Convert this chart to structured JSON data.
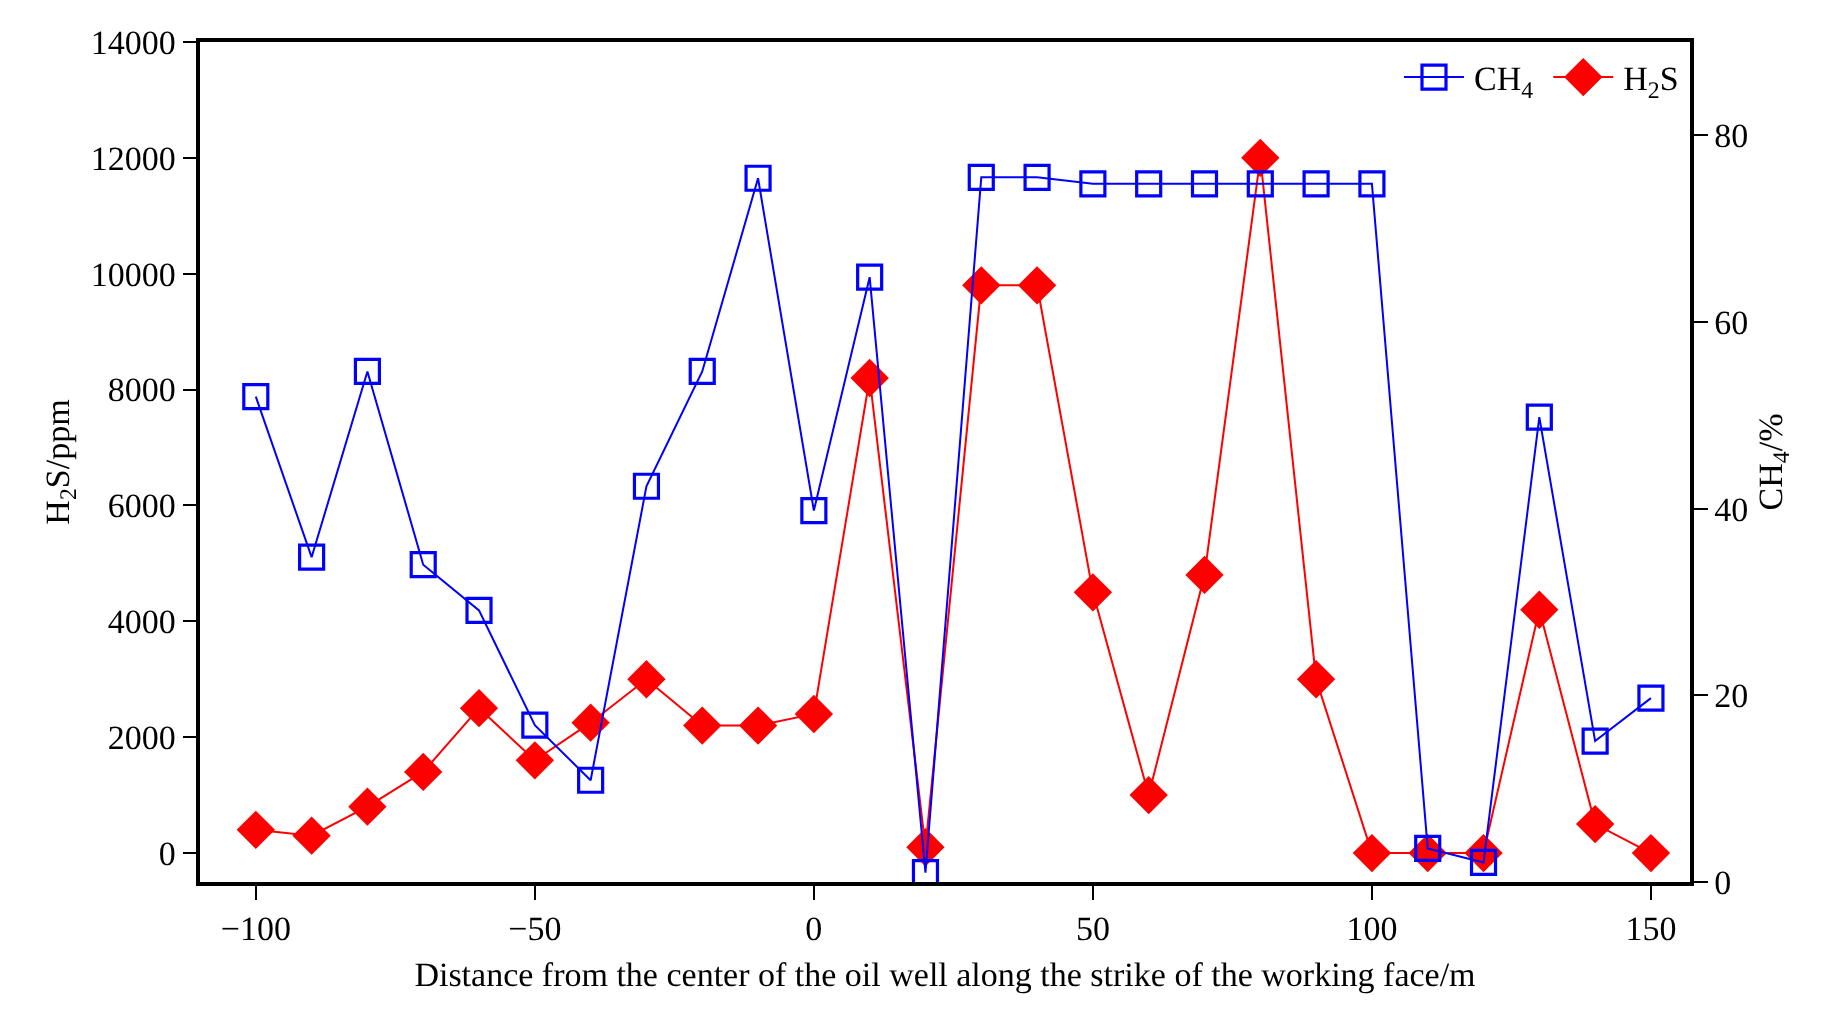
{
  "chart_data": {
    "type": "line",
    "xlabel": "Distance from the center of the oil well along the strike of the working face/m",
    "ylabel": "H$_{2}$S/ppm",
    "y2label": "CH$_{4}$/%",
    "x": [
      -100,
      -90,
      -80,
      -70,
      -60,
      -50,
      -40,
      -30,
      -20,
      -10,
      0,
      10,
      20,
      30,
      40,
      50,
      60,
      70,
      80,
      90,
      100,
      110,
      120,
      130,
      140,
      150
    ],
    "xlim": [
      -110,
      157
    ],
    "xticks": [
      -100,
      -50,
      0,
      50,
      100,
      150
    ],
    "ylim": [
      -500,
      14000
    ],
    "yticks": [
      0,
      2000,
      4000,
      6000,
      8000,
      10000,
      12000,
      14000
    ],
    "y2lim": [
      0,
      90
    ],
    "y2ticks": [
      0,
      20,
      40,
      60,
      80
    ],
    "legend": "top right",
    "line_style": "solid",
    "series": [
      {
        "name": "CH$_{4}$",
        "color": "#0000ff",
        "axis": "y2",
        "marker": "square",
        "values": [
          52,
          34.8,
          54.7,
          34,
          29.1,
          16.8,
          10.9,
          42.4,
          54.7,
          75.4,
          39.8,
          64.8,
          1,
          75.5,
          75.5,
          74.8,
          74.8,
          74.8,
          74.8,
          74.8,
          74.8,
          3.6,
          2.1,
          49.8,
          15.1,
          19.7
        ]
      },
      {
        "name": "H$_{2}$S",
        "color": "#ff0000",
        "axis": "y",
        "marker": "diamond",
        "values": [
          400,
          300,
          800,
          1400,
          2500,
          1600,
          2250,
          3000,
          2200,
          2200,
          2400,
          8200,
          100,
          9800,
          9800,
          4500,
          1000,
          4800,
          12000,
          3000,
          0,
          0,
          0,
          4200,
          500,
          0
        ]
      }
    ]
  }
}
